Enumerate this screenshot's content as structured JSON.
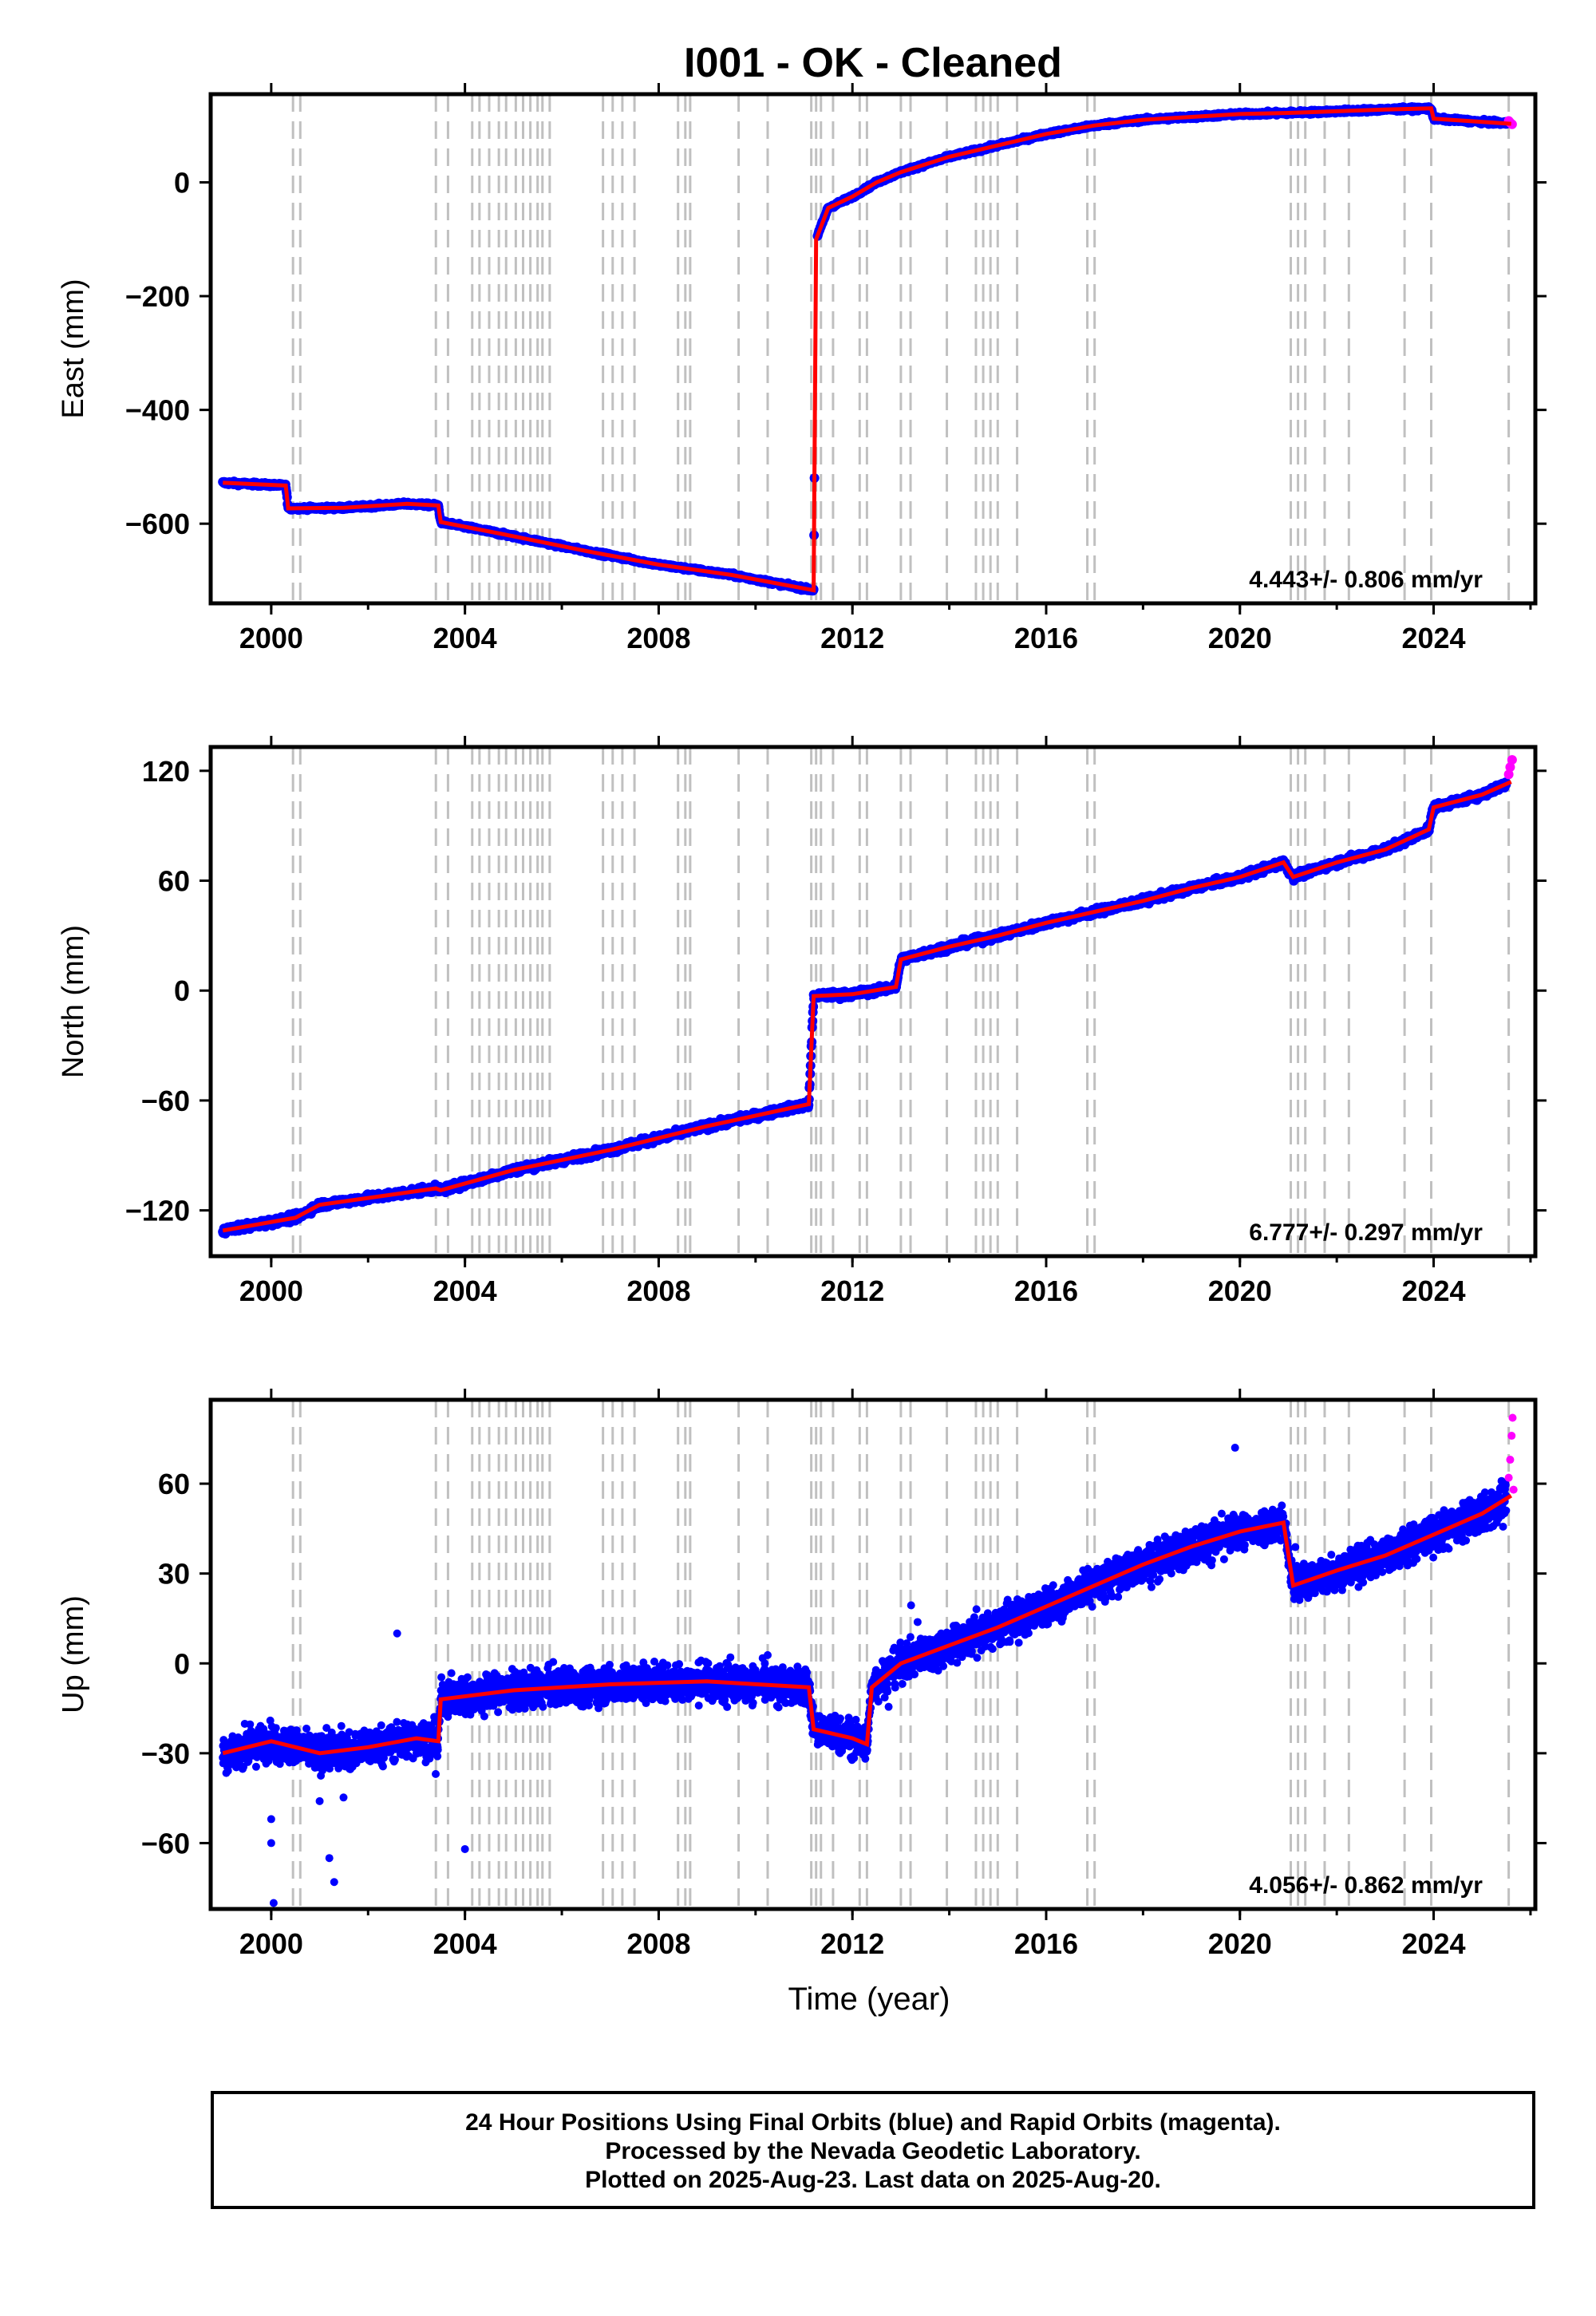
{
  "title": "I001  - OK - Cleaned",
  "colors": {
    "final_orbits": "#0000ff",
    "rapid_orbits": "#ff00ff",
    "model": "#ff0000",
    "event_lines": "#c0c0c0",
    "frame": "#000000"
  },
  "chart_data": [
    {
      "type": "scatter",
      "component": "east",
      "ylabel": "East (mm)",
      "xlabel": "",
      "xlim": [
        1998.75,
        2026.1
      ],
      "ylim": [
        -740,
        155
      ],
      "xticks": [
        2000,
        2004,
        2008,
        2012,
        2016,
        2020,
        2024
      ],
      "yticks": [
        -600,
        -400,
        -200,
        0
      ],
      "rate_label": "4.443+/- 0.806 mm/yr",
      "model_line": [
        [
          1999.0,
          -528
        ],
        [
          2000.3,
          -533
        ],
        [
          2000.35,
          -573
        ],
        [
          2001.5,
          -572
        ],
        [
          2002.8,
          -565
        ],
        [
          2003.45,
          -568
        ],
        [
          2003.5,
          -597
        ],
        [
          2005.0,
          -622
        ],
        [
          2006.5,
          -648
        ],
        [
          2008.0,
          -672
        ],
        [
          2009.5,
          -690
        ],
        [
          2011.2,
          -717
        ],
        [
          2011.25,
          -100
        ],
        [
          2011.5,
          -45
        ],
        [
          2012.0,
          -25
        ],
        [
          2012.5,
          0
        ],
        [
          2013.0,
          18
        ],
        [
          2014.0,
          45
        ],
        [
          2015.0,
          65
        ],
        [
          2016.0,
          85
        ],
        [
          2017.0,
          100
        ],
        [
          2018.0,
          110
        ],
        [
          2019.0,
          115
        ],
        [
          2020.0,
          120
        ],
        [
          2021.0,
          122
        ],
        [
          2022.0,
          125
        ],
        [
          2023.0,
          128
        ],
        [
          2023.95,
          130
        ],
        [
          2024.0,
          112
        ],
        [
          2025.6,
          103
        ]
      ],
      "rapid_points": [
        [
          2025.55,
          108
        ],
        [
          2025.58,
          105
        ],
        [
          2025.62,
          102
        ]
      ]
    },
    {
      "type": "scatter",
      "component": "north",
      "ylabel": "North (mm)",
      "xlabel": "",
      "xlim": [
        1998.75,
        2026.1
      ],
      "ylim": [
        -145,
        133
      ],
      "xticks": [
        2000,
        2004,
        2008,
        2012,
        2016,
        2020,
        2024
      ],
      "yticks": [
        -120,
        -60,
        0,
        60,
        120
      ],
      "rate_label": "6.777+/- 0.297 mm/yr",
      "model_line": [
        [
          1999.0,
          -131
        ],
        [
          2000.5,
          -124
        ],
        [
          2001.0,
          -117
        ],
        [
          2003.4,
          -108
        ],
        [
          2003.5,
          -109
        ],
        [
          2005.0,
          -98
        ],
        [
          2007.0,
          -87
        ],
        [
          2009.0,
          -74
        ],
        [
          2011.1,
          -62
        ],
        [
          2011.2,
          -3
        ],
        [
          2012.0,
          -2
        ],
        [
          2012.9,
          2
        ],
        [
          2013.0,
          17
        ],
        [
          2014.0,
          24
        ],
        [
          2015.0,
          30
        ],
        [
          2016.0,
          37
        ],
        [
          2017.0,
          43
        ],
        [
          2018.0,
          49
        ],
        [
          2019.0,
          56
        ],
        [
          2020.0,
          62
        ],
        [
          2020.9,
          70
        ],
        [
          2021.1,
          62
        ],
        [
          2022.0,
          70
        ],
        [
          2023.0,
          77
        ],
        [
          2023.9,
          88
        ],
        [
          2024.0,
          100
        ],
        [
          2025.0,
          107
        ],
        [
          2025.6,
          114
        ]
      ],
      "rapid_points": [
        [
          2025.55,
          118
        ],
        [
          2025.58,
          122
        ],
        [
          2025.62,
          126
        ]
      ]
    },
    {
      "type": "scatter",
      "component": "up",
      "ylabel": "Up (mm)",
      "xlabel": "Time (year)",
      "xlim": [
        1998.75,
        2026.1
      ],
      "ylim": [
        -82,
        88
      ],
      "xticks": [
        2000,
        2004,
        2008,
        2012,
        2016,
        2020,
        2024
      ],
      "yticks": [
        -60,
        -30,
        0,
        30,
        60
      ],
      "rate_label": "4.056+/- 0.862 mm/yr",
      "model_line": [
        [
          1999.0,
          -30
        ],
        [
          2000.0,
          -26
        ],
        [
          2001.0,
          -30
        ],
        [
          2002.0,
          -28
        ],
        [
          2003.0,
          -25
        ],
        [
          2003.45,
          -26
        ],
        [
          2003.5,
          -12
        ],
        [
          2005.0,
          -9
        ],
        [
          2007.0,
          -7
        ],
        [
          2009.0,
          -6
        ],
        [
          2011.1,
          -8
        ],
        [
          2011.2,
          -22
        ],
        [
          2012.0,
          -25
        ],
        [
          2012.3,
          -27
        ],
        [
          2012.4,
          -8
        ],
        [
          2013.0,
          0
        ],
        [
          2014.0,
          6
        ],
        [
          2015.0,
          12
        ],
        [
          2016.0,
          19
        ],
        [
          2017.0,
          26
        ],
        [
          2018.0,
          33
        ],
        [
          2019.0,
          39
        ],
        [
          2020.0,
          44
        ],
        [
          2020.9,
          47
        ],
        [
          2021.1,
          26
        ],
        [
          2022.0,
          31
        ],
        [
          2023.0,
          36
        ],
        [
          2024.0,
          43
        ],
        [
          2025.0,
          50
        ],
        [
          2025.6,
          56
        ]
      ],
      "rapid_points": [
        [
          2025.55,
          62
        ],
        [
          2025.58,
          68
        ],
        [
          2025.61,
          76
        ],
        [
          2025.63,
          82
        ],
        [
          2025.65,
          58
        ]
      ]
    }
  ],
  "event_lines": [
    2000.45,
    2000.6,
    2003.4,
    2003.65,
    2004.15,
    2004.3,
    2004.5,
    2004.7,
    2004.85,
    2005.05,
    2005.2,
    2005.35,
    2005.5,
    2005.6,
    2005.75,
    2006.85,
    2007.05,
    2007.25,
    2007.5,
    2008.4,
    2008.55,
    2008.65,
    2009.65,
    2010.25,
    2011.15,
    2011.25,
    2011.35,
    2011.6,
    2012.15,
    2012.3,
    2013.0,
    2013.2,
    2013.95,
    2014.55,
    2014.7,
    2014.85,
    2015.0,
    2015.4,
    2016.85,
    2017.0,
    2021.05,
    2021.2,
    2021.35,
    2021.75,
    2022.25,
    2023.4,
    2023.95,
    2025.55
  ],
  "caption": {
    "line1": "24 Hour Positions Using Final Orbits (blue) and Rapid Orbits (magenta).",
    "line2": "Processed by the Nevada Geodetic Laboratory.",
    "line3": "Plotted on 2025-Aug-23. Last data on 2025-Aug-20."
  }
}
